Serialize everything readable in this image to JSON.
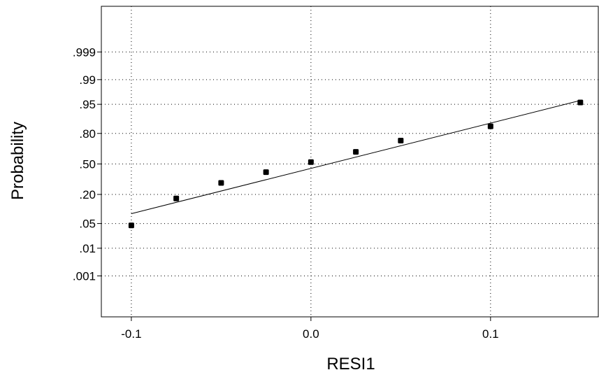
{
  "chart_data": {
    "type": "scatter",
    "scale_y": "normal-probability",
    "grid": true,
    "xlabel": "RESI1",
    "ylabel": "Probability",
    "xlim": [
      -0.1167,
      0.16
    ],
    "x_ticks": [
      {
        "value": -0.1,
        "label": "-0.1"
      },
      {
        "value": 0.0,
        "label": "0.0"
      },
      {
        "value": 0.1,
        "label": "0.1"
      }
    ],
    "y_ticks": [
      {
        "value": 0.999,
        "label": ".999"
      },
      {
        "value": 0.99,
        "label": ".99"
      },
      {
        "value": 0.95,
        "label": ".95"
      },
      {
        "value": 0.8,
        "label": ".80"
      },
      {
        "value": 0.5,
        "label": ".50"
      },
      {
        "value": 0.2,
        "label": ".20"
      },
      {
        "value": 0.05,
        "label": ".05"
      },
      {
        "value": 0.01,
        "label": ".01"
      },
      {
        "value": 0.001,
        "label": ".001"
      }
    ],
    "points": [
      {
        "x": -0.1,
        "p": 0.045
      },
      {
        "x": -0.075,
        "p": 0.17
      },
      {
        "x": -0.05,
        "p": 0.3
      },
      {
        "x": -0.025,
        "p": 0.41
      },
      {
        "x": 0.0,
        "p": 0.52
      },
      {
        "x": 0.025,
        "p": 0.63
      },
      {
        "x": 0.05,
        "p": 0.74
      },
      {
        "x": 0.1,
        "p": 0.85
      },
      {
        "x": 0.15,
        "p": 0.955
      }
    ],
    "fit_line": {
      "x0": -0.1,
      "p0": 0.085,
      "x1": 0.15,
      "p1": 0.96
    }
  }
}
